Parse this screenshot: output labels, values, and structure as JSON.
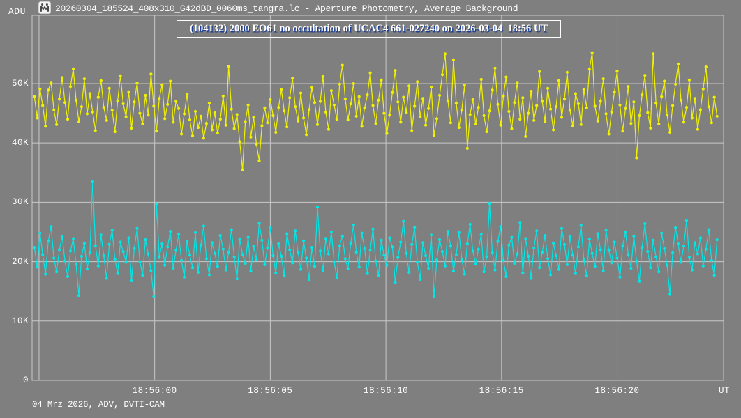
{
  "window": {
    "title": "20260304_185524_408x310_G42dBD_0060ms_tangra.lc - Aperture Photometry, Average Background",
    "icon": "tangra-app-icon"
  },
  "labels": {
    "y_axis_unit": "ADU",
    "x_axis_unit": "UT",
    "footer": "04 Mrz 2026, ADV, DVTI-CAM"
  },
  "colors": {
    "background": "#7f7f7f",
    "grid": "#c9c9c9",
    "text": "#ffffff",
    "title_shadow": "#1c3f94",
    "series_yellow": "#f2f200",
    "series_cyan": "#00e8e8"
  },
  "chart_data": {
    "type": "line",
    "title": "(104132) 2000 EO61 no occultation of UCAC4 661-027240 on 2026-03-04  18:56 UT",
    "ylabel": "ADU",
    "xlabel": "UT",
    "ylim": [
      0,
      61500
    ],
    "xlim_s": [
      -5.3,
      24.6
    ],
    "grid": true,
    "y_ticks": [
      {
        "value": 0,
        "label": "0"
      },
      {
        "value": 10000,
        "label": "10K"
      },
      {
        "value": 20000,
        "label": "20K"
      },
      {
        "value": 30000,
        "label": "30K"
      },
      {
        "value": 40000,
        "label": "40K"
      },
      {
        "value": 50000,
        "label": "50K"
      }
    ],
    "x_ticks": [
      {
        "t_s": 0,
        "label": "18:56:00"
      },
      {
        "t_s": 5,
        "label": "18:56:05"
      },
      {
        "t_s": 10,
        "label": "18:56:10"
      },
      {
        "t_s": 15,
        "label": "18:56:15"
      },
      {
        "t_s": 20,
        "label": "18:56:20"
      }
    ],
    "x_grid_s": [
      -5,
      0,
      5,
      10,
      15,
      20
    ],
    "t_start_s": -5.2,
    "dt_s": 0.12,
    "values_unit": "kADU",
    "series": [
      {
        "name": "target-measurement-yellow",
        "color": "#f2f200",
        "values": [
          47.8,
          44.2,
          49.1,
          46.3,
          42.8,
          48.9,
          50.2,
          45.6,
          43.1,
          47.4,
          51.0,
          46.8,
          44.0,
          49.5,
          52.5,
          47.2,
          43.6,
          46.1,
          50.8,
          44.9,
          48.3,
          45.2,
          42.1,
          47.7,
          50.5,
          46.0,
          43.8,
          49.2,
          45.5,
          41.9,
          47.1,
          51.3,
          46.6,
          44.4,
          48.6,
          42.5,
          46.9,
          50.1,
          45.0,
          43.2,
          48.0,
          44.7,
          51.6,
          46.2,
          42.0,
          47.5,
          49.8,
          44.1,
          46.5,
          50.4,
          43.5,
          47.0,
          45.8,
          41.5,
          44.9,
          48.2,
          43.9,
          41.2,
          45.3,
          42.6,
          44.5,
          40.8,
          43.3,
          46.7,
          42.2,
          45.1,
          41.7,
          44.0,
          47.9,
          43.0,
          52.9,
          45.7,
          42.4,
          44.8,
          40.2,
          35.5,
          43.6,
          46.4,
          41.0,
          44.3,
          39.8,
          37.0,
          42.9,
          45.9,
          43.4,
          47.3,
          44.6,
          41.8,
          46.0,
          49.0,
          45.4,
          42.7,
          47.6,
          50.9,
          46.1,
          43.7,
          48.4,
          44.2,
          41.4,
          45.6,
          49.3,
          46.8,
          43.1,
          47.0,
          51.2,
          45.2,
          42.3,
          48.8,
          46.4,
          44.0,
          49.9,
          53.1,
          47.4,
          43.9,
          46.6,
          50.0,
          44.5,
          47.8,
          42.8,
          45.9,
          48.1,
          51.8,
          46.3,
          43.3,
          47.2,
          50.6,
          45.0,
          41.6,
          44.7,
          48.5,
          52.2,
          46.9,
          43.5,
          47.7,
          45.1,
          49.6,
          42.1,
          46.2,
          50.3,
          44.4,
          47.5,
          43.0,
          45.8,
          49.4,
          41.3,
          44.1,
          48.0,
          51.5,
          55.0,
          47.1,
          43.4,
          54.0,
          46.7,
          42.6,
          45.5,
          49.7,
          39.1,
          44.8,
          47.3,
          43.2,
          46.0,
          50.7,
          44.6,
          41.9,
          45.4,
          48.9,
          52.6,
          46.5,
          43.0,
          47.9,
          51.1,
          45.3,
          42.4,
          46.8,
          50.2,
          44.0,
          47.6,
          41.1,
          45.0,
          48.7,
          43.8,
          46.3,
          52.0,
          47.0,
          43.6,
          49.2,
          45.7,
          42.2,
          46.1,
          50.5,
          44.3,
          47.4,
          51.9,
          45.5,
          42.9,
          48.3,
          46.6,
          43.1,
          49.0,
          45.9,
          52.4,
          55.2,
          46.2,
          43.7,
          47.1,
          50.8,
          44.9,
          41.5,
          45.2,
          48.6,
          52.1,
          46.4,
          42.0,
          45.8,
          49.5,
          43.3,
          46.9,
          37.5,
          44.6,
          48.1,
          51.4,
          45.1,
          42.5,
          55.0,
          46.7,
          43.2,
          47.8,
          50.4,
          44.7,
          41.8,
          46.3,
          49.9,
          53.3,
          47.2,
          43.5,
          46.0,
          50.6,
          44.2,
          47.5,
          42.3,
          45.6,
          49.1,
          52.8,
          46.1,
          43.4,
          47.7,
          44.5
        ]
      },
      {
        "name": "average-background-cyan",
        "color": "#00e8e8",
        "values": [
          22.4,
          19.1,
          24.8,
          21.2,
          17.9,
          23.5,
          25.9,
          20.6,
          18.3,
          22.0,
          24.2,
          20.1,
          17.5,
          21.8,
          23.9,
          19.6,
          14.3,
          20.9,
          23.1,
          18.8,
          21.5,
          33.5,
          22.7,
          19.3,
          24.5,
          21.0,
          17.2,
          22.9,
          25.3,
          20.4,
          18.0,
          23.3,
          21.7,
          19.9,
          24.0,
          16.8,
          22.2,
          25.6,
          20.0,
          17.7,
          23.7,
          21.3,
          18.5,
          14.1,
          29.7,
          20.7,
          23.0,
          19.4,
          22.5,
          25.1,
          18.9,
          21.9,
          24.6,
          20.2,
          17.4,
          23.4,
          21.1,
          19.0,
          24.9,
          18.2,
          22.8,
          26.0,
          20.5,
          17.8,
          23.2,
          21.4,
          19.2,
          24.4,
          22.1,
          18.6,
          21.6,
          25.4,
          20.8,
          17.1,
          23.8,
          21.2,
          19.7,
          24.1,
          18.4,
          22.6,
          20.3,
          26.5,
          23.6,
          19.5,
          22.3,
          25.7,
          21.0,
          18.1,
          23.0,
          20.9,
          17.6,
          24.7,
          22.0,
          19.8,
          25.2,
          21.5,
          18.7,
          23.5,
          20.6,
          16.9,
          22.4,
          19.2,
          29.2,
          21.8,
          18.5,
          23.9,
          21.3,
          25.0,
          20.0,
          17.3,
          22.7,
          24.3,
          20.5,
          18.8,
          23.1,
          26.2,
          21.6,
          19.1,
          24.8,
          22.2,
          18.0,
          21.9,
          25.5,
          20.1,
          17.7,
          23.6,
          21.1,
          19.4,
          24.0,
          22.5,
          16.5,
          20.7,
          23.3,
          26.8,
          21.4,
          18.2,
          22.9,
          25.8,
          19.9,
          17.0,
          23.2,
          21.0,
          18.9,
          24.5,
          14.1,
          20.3,
          23.7,
          21.7,
          19.3,
          25.1,
          22.6,
          18.4,
          21.2,
          24.9,
          20.4,
          17.9,
          23.0,
          26.3,
          21.8,
          19.6,
          22.1,
          24.6,
          18.3,
          20.8,
          29.8,
          21.5,
          18.6,
          23.4,
          25.9,
          20.2,
          17.5,
          22.8,
          24.1,
          19.7,
          21.3,
          26.6,
          18.1,
          23.9,
          20.9,
          17.2,
          22.3,
          25.2,
          19.0,
          21.6,
          24.4,
          20.5,
          17.8,
          23.1,
          21.0,
          18.7,
          25.6,
          22.9,
          19.5,
          24.2,
          21.1,
          18.0,
          22.5,
          26.1,
          20.3,
          17.6,
          23.8,
          21.4,
          19.2,
          24.7,
          22.0,
          18.5,
          25.3,
          21.9,
          19.8,
          23.3,
          20.6,
          17.4,
          22.7,
          25.0,
          21.2,
          18.9,
          24.3,
          20.1,
          16.7,
          22.4,
          26.4,
          21.7,
          19.0,
          23.6,
          20.8,
          18.3,
          24.8,
          22.2,
          19.4,
          14.5,
          21.5,
          25.7,
          23.0,
          19.9,
          22.6,
          26.9,
          20.7,
          18.6,
          23.2,
          21.3,
          24.0,
          19.3,
          22.1,
          25.4,
          20.2,
          17.7,
          23.7
        ]
      }
    ]
  }
}
